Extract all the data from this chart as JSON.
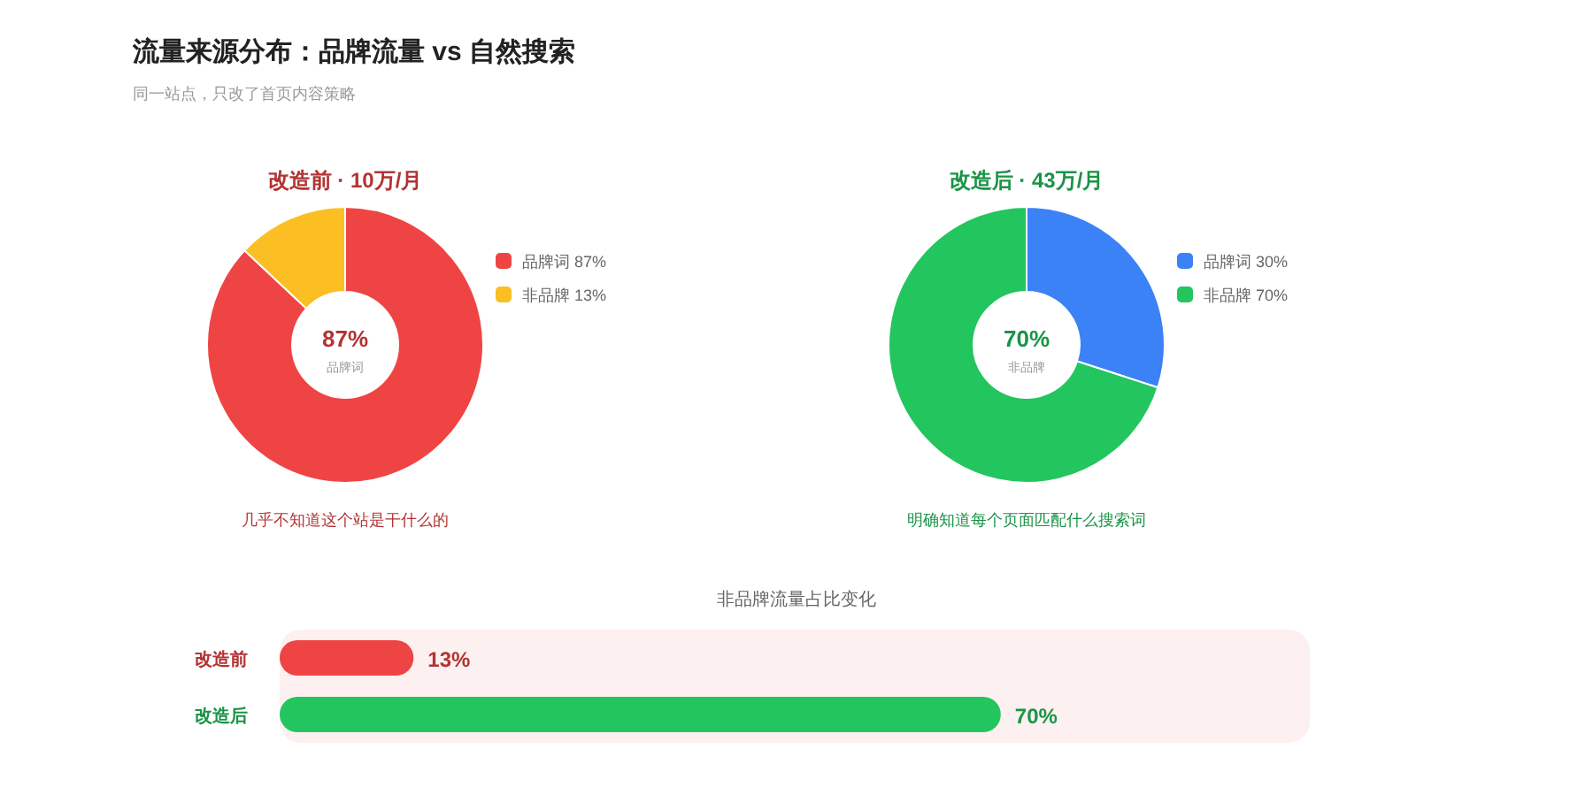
{
  "chart_data": [
    {
      "type": "other",
      "title": "流量来源分布：品牌流量 vs 自然搜索",
      "subtitle": "同一站点，只改了首页内容策略"
    },
    {
      "type": "donut",
      "title": "改造前 · 10万/月",
      "categories": [
        "品牌词",
        "非品牌"
      ],
      "values": [
        87,
        13
      ],
      "value_labels": [
        "87%",
        "13%"
      ],
      "colors": [
        "#ef4444",
        "#fbbf24"
      ],
      "legend": "right",
      "annotations": [
        "87%",
        "品牌词",
        "几乎不知道这个站是干什么的"
      ]
    },
    {
      "type": "donut",
      "title": "改造后 · 43万/月",
      "categories": [
        "品牌词",
        "非品牌"
      ],
      "values": [
        30,
        70
      ],
      "value_labels": [
        "30%",
        "70%"
      ],
      "colors": [
        "#3b82f6",
        "#22c55e"
      ],
      "legend": "right",
      "annotations": [
        "70%",
        "非品牌",
        "明确知道每个页面匹配什么搜索词"
      ]
    },
    {
      "type": "bar",
      "orientation": "horizontal",
      "title": "非品牌流量占比变化",
      "categories": [
        "改造前",
        "改造后"
      ],
      "values": [
        13,
        70
      ],
      "value_labels": [
        "13%",
        "70%"
      ],
      "colors": [
        "#ef4444",
        "#22c55e"
      ],
      "xlim": [
        0,
        100
      ],
      "tick_labels": "y",
      "bands": [
        {
          "axis": "x",
          "from": 0,
          "to": 100,
          "color": "#fdf0f0"
        }
      ]
    }
  ]
}
